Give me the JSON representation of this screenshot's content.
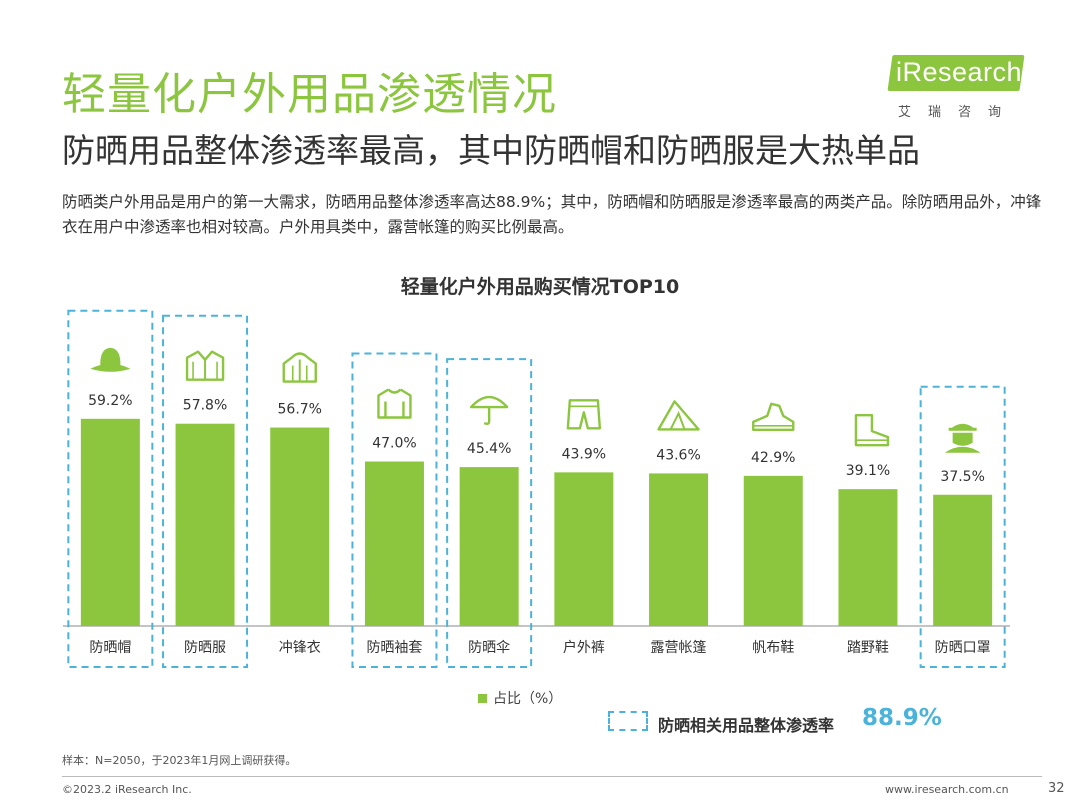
{
  "header": {
    "title": "轻量化户外用品渗透情况",
    "subtitle": "防晒用品整体渗透率最高，其中防晒帽和防晒服是大热单品",
    "description": "防晒类户外用品是用户的第一大需求，防晒用品整体渗透率高达88.9%；其中，防晒帽和防晒服是渗透率最高的两类产品。除防晒用品外，冲锋衣在用户中渗透率也相对较高。户外用具类中，露营帐篷的购买比例最高。"
  },
  "logo": {
    "text": "iResearch",
    "sub": "艾瑞咨询"
  },
  "colors": {
    "bar": "#8cc63f",
    "highlight": "#4bb3d9",
    "icon": "#8cc63f"
  },
  "chart_data": {
    "type": "bar",
    "title": "轻量化户外用品购买情况TOP10",
    "categories": [
      "防晒帽",
      "防晒服",
      "冲锋衣",
      "防晒袖套",
      "防晒伞",
      "户外裤",
      "露营帐篷",
      "帆布鞋",
      "踏野鞋",
      "防晒口罩"
    ],
    "values": [
      59.2,
      57.8,
      56.7,
      47.0,
      45.4,
      43.9,
      43.6,
      42.9,
      39.1,
      37.5
    ],
    "value_labels": [
      "59.2%",
      "57.8%",
      "56.7%",
      "47.0%",
      "45.4%",
      "43.9%",
      "43.6%",
      "42.9%",
      "39.1%",
      "37.5%"
    ],
    "highlighted": [
      true,
      true,
      false,
      true,
      true,
      false,
      false,
      false,
      false,
      true
    ],
    "icons": [
      "hat-icon",
      "jacket-icon",
      "raincoat-icon",
      "sleeve-icon",
      "umbrella-icon",
      "pants-icon",
      "tent-icon",
      "sneaker-icon",
      "boot-icon",
      "mask-icon"
    ],
    "legend": "占比（%）",
    "ylim": [
      0,
      100
    ]
  },
  "penetration": {
    "label": "防晒相关用品整体渗透率",
    "value": "88.9%"
  },
  "footer": {
    "note": "样本：N=2050，于2023年1月网上调研获得。",
    "copyright": "©2023.2 iResearch Inc.",
    "website": "www.iresearch.com.cn",
    "page": "32"
  }
}
